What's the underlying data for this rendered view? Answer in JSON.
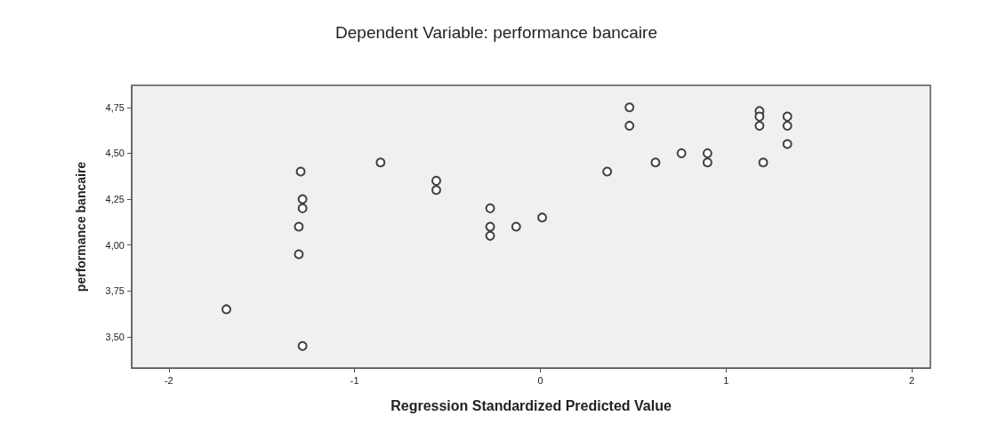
{
  "chart_data": {
    "type": "scatter",
    "title": "Dependent Variable: performance bancaire",
    "xlabel": "Regression Standardized Predicted Value",
    "ylabel": "performance bancaire",
    "xlim": [
      -2.2,
      2.1
    ],
    "xticks": [
      -2,
      -1,
      0,
      1,
      2
    ],
    "ylim": [
      3.33,
      4.87
    ],
    "yticks": [
      {
        "value": 3.5,
        "label": "3,50"
      },
      {
        "value": 3.75,
        "label": "3,75"
      },
      {
        "value": 4.0,
        "label": "4,00"
      },
      {
        "value": 4.25,
        "label": "4,25"
      },
      {
        "value": 4.5,
        "label": "4,50"
      },
      {
        "value": 4.75,
        "label": "4,75"
      }
    ],
    "grid": false,
    "marker": "circle",
    "series": [
      {
        "color": "#404040",
        "x": [
          -1.69,
          -1.29,
          -1.28,
          -1.28,
          -1.3,
          -1.3,
          -1.28,
          -0.86,
          -0.56,
          -0.56,
          -0.27,
          -0.27,
          -0.27,
          -0.13,
          0.01,
          0.36,
          0.48,
          0.48,
          0.62,
          0.76,
          0.9,
          0.9,
          1.18,
          1.18,
          1.18,
          1.2,
          1.33,
          1.33,
          1.33
        ],
        "values": [
          3.65,
          4.4,
          4.25,
          4.2,
          4.1,
          3.95,
          3.45,
          4.45,
          4.35,
          4.3,
          4.2,
          4.1,
          4.05,
          4.1,
          4.15,
          4.4,
          4.75,
          4.65,
          4.45,
          4.5,
          4.5,
          4.45,
          4.73,
          4.7,
          4.65,
          4.45,
          4.7,
          4.65,
          4.55
        ]
      }
    ]
  }
}
